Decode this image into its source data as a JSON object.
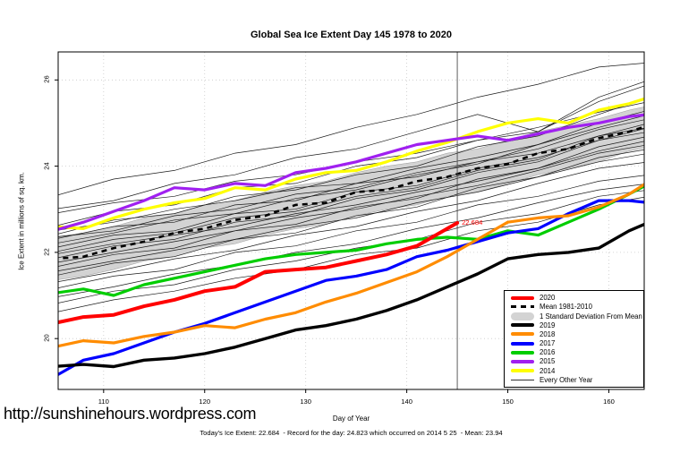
{
  "page": {
    "footer_url": "http://sunshinehours.wordpress.com",
    "stats_line": "Today's Ice Extent: 22.684  - Record for the day: 24.823 which occurred on 2014 5 25  - Mean: 23.94"
  },
  "chart_data": {
    "type": "line",
    "title": "Global Sea Ice Extent Day 145 1978 to 2020",
    "xlabel": "Day of Year",
    "ylabel": "Ice Extent in millions of sq. km.",
    "xlim": [
      105.5,
      163.5
    ],
    "ylim": [
      18.82,
      26.65
    ],
    "x_ticks": [
      110,
      120,
      130,
      140,
      150,
      160
    ],
    "y_ticks": [
      20,
      22,
      24,
      26
    ],
    "grid": true,
    "legend_position": "bottom-right",
    "marker_day": 145,
    "annotation": {
      "text": "22.684",
      "x": 145,
      "y": 22.684,
      "color": "#ff0000"
    },
    "x": [
      105,
      108,
      111,
      114,
      117,
      120,
      123,
      126,
      129,
      132,
      135,
      138,
      141,
      144,
      147,
      150,
      153,
      156,
      159,
      162,
      164
    ],
    "mean": {
      "name": "Mean 1981-2010",
      "color": "#000000",
      "values": [
        21.85,
        21.9,
        22.1,
        22.25,
        22.45,
        22.55,
        22.75,
        22.85,
        23.1,
        23.15,
        23.4,
        23.45,
        23.65,
        23.75,
        23.95,
        24.05,
        24.3,
        24.4,
        24.65,
        24.8,
        24.95
      ]
    },
    "band": {
      "name": "1 Standard Deviation From Mean",
      "color": "#d3d3d3",
      "upper": [
        22.35,
        22.45,
        22.6,
        22.8,
        22.9,
        23.1,
        23.2,
        23.4,
        23.55,
        23.65,
        23.85,
        24.0,
        24.1,
        24.3,
        24.4,
        24.6,
        24.8,
        24.95,
        25.1,
        25.3,
        25.4
      ],
      "lower": [
        21.35,
        21.45,
        21.6,
        21.8,
        21.9,
        22.1,
        22.2,
        22.4,
        22.55,
        22.65,
        22.85,
        23.0,
        23.1,
        23.3,
        23.4,
        23.6,
        23.8,
        23.95,
        24.1,
        24.35,
        24.45
      ]
    },
    "series": [
      {
        "name": "2014",
        "color": "#ffff00",
        "width": 3.2,
        "values": [
          22.6,
          22.55,
          22.8,
          23.0,
          23.15,
          23.25,
          23.5,
          23.45,
          23.7,
          23.85,
          23.9,
          24.1,
          24.35,
          24.55,
          24.8,
          25.0,
          25.1,
          25.0,
          25.3,
          25.45,
          25.6
        ]
      },
      {
        "name": "2015",
        "color": "#a020f0",
        "width": 3.2,
        "values": [
          22.5,
          22.7,
          22.95,
          23.2,
          23.5,
          23.45,
          23.6,
          23.55,
          23.85,
          23.95,
          24.1,
          24.3,
          24.5,
          24.6,
          24.7,
          24.6,
          24.75,
          24.9,
          25.0,
          25.15,
          25.2
        ]
      },
      {
        "name": "2016",
        "color": "#00cd00",
        "width": 3.2,
        "values": [
          21.05,
          21.15,
          21.0,
          21.25,
          21.4,
          21.55,
          21.7,
          21.85,
          21.95,
          22.0,
          22.05,
          22.2,
          22.3,
          22.35,
          22.3,
          22.5,
          22.4,
          22.7,
          23.0,
          23.35,
          23.6
        ]
      },
      {
        "name": "2017",
        "color": "#0000ff",
        "width": 3.2,
        "values": [
          19.1,
          19.5,
          19.65,
          19.9,
          20.15,
          20.35,
          20.6,
          20.85,
          21.1,
          21.35,
          21.45,
          21.6,
          21.9,
          22.05,
          22.25,
          22.45,
          22.55,
          22.9,
          23.2,
          23.2,
          23.15
        ]
      },
      {
        "name": "2018",
        "color": "#ff8c00",
        "width": 3.2,
        "values": [
          19.8,
          19.95,
          19.9,
          20.05,
          20.15,
          20.3,
          20.25,
          20.45,
          20.6,
          20.85,
          21.05,
          21.3,
          21.55,
          21.9,
          22.3,
          22.7,
          22.8,
          22.85,
          23.05,
          23.35,
          23.65
        ]
      },
      {
        "name": "2019",
        "color": "#000000",
        "width": 3.4,
        "values": [
          19.35,
          19.4,
          19.35,
          19.5,
          19.55,
          19.65,
          19.8,
          20.0,
          20.2,
          20.3,
          20.45,
          20.65,
          20.9,
          21.2,
          21.5,
          21.85,
          21.95,
          22.0,
          22.1,
          22.5,
          22.7
        ]
      },
      {
        "name": "2020",
        "color": "#ff0000",
        "width": 4,
        "x": [
          105,
          108,
          111,
          114,
          117,
          120,
          123,
          126,
          129,
          132,
          135,
          138,
          141,
          144,
          145
        ],
        "values": [
          20.35,
          20.5,
          20.55,
          20.75,
          20.9,
          21.1,
          21.2,
          21.55,
          21.6,
          21.65,
          21.8,
          21.95,
          22.15,
          22.55,
          22.684
        ]
      }
    ],
    "other_years": {
      "name": "Every Other Year",
      "color": "#1c1c1c",
      "x": [
        105,
        111,
        117,
        123,
        129,
        135,
        141,
        147,
        153,
        159,
        164
      ],
      "lines": [
        [
          23.3,
          23.7,
          23.9,
          24.3,
          24.5,
          24.9,
          25.2,
          25.6,
          25.9,
          26.3,
          26.4
        ],
        [
          23.0,
          23.2,
          23.6,
          23.8,
          24.2,
          24.4,
          24.8,
          25.2,
          24.8,
          25.6,
          26.0
        ],
        [
          22.9,
          23.15,
          23.3,
          23.65,
          23.8,
          24.1,
          24.3,
          24.6,
          24.9,
          25.25,
          25.5
        ],
        [
          22.6,
          22.95,
          23.1,
          23.5,
          23.6,
          24.0,
          24.2,
          24.6,
          24.8,
          25.5,
          25.9
        ],
        [
          22.5,
          22.7,
          23.0,
          23.2,
          23.5,
          23.6,
          23.95,
          24.2,
          24.5,
          25.0,
          25.3
        ],
        [
          22.4,
          22.75,
          22.9,
          23.3,
          23.45,
          23.8,
          24.0,
          24.45,
          24.7,
          25.2,
          25.6
        ],
        [
          22.35,
          22.5,
          22.85,
          23.0,
          23.35,
          23.5,
          23.85,
          24.1,
          24.4,
          24.85,
          25.1
        ],
        [
          22.3,
          22.6,
          22.7,
          23.1,
          23.2,
          23.6,
          23.75,
          24.1,
          24.3,
          24.7,
          24.9
        ],
        [
          22.2,
          22.45,
          22.75,
          22.9,
          23.25,
          23.45,
          23.8,
          24.05,
          24.5,
          24.9,
          25.2
        ],
        [
          22.1,
          22.4,
          22.5,
          22.9,
          23.0,
          23.4,
          23.55,
          23.95,
          24.2,
          24.6,
          24.8
        ],
        [
          22.0,
          22.3,
          22.45,
          22.8,
          22.95,
          23.3,
          23.5,
          23.9,
          24.15,
          24.7,
          25.0
        ],
        [
          21.95,
          22.2,
          22.4,
          22.6,
          22.9,
          23.1,
          23.4,
          23.65,
          23.95,
          24.35,
          24.6
        ],
        [
          21.85,
          22.15,
          22.3,
          22.7,
          22.85,
          23.25,
          23.45,
          23.85,
          24.1,
          24.6,
          24.9
        ],
        [
          21.75,
          22.0,
          22.25,
          22.5,
          22.8,
          23.0,
          23.3,
          23.55,
          23.9,
          24.3,
          24.5
        ],
        [
          21.65,
          21.95,
          22.1,
          22.5,
          22.65,
          23.05,
          23.25,
          23.7,
          23.95,
          24.45,
          24.7
        ],
        [
          21.55,
          21.8,
          22.05,
          22.3,
          22.6,
          22.8,
          23.15,
          23.4,
          23.75,
          24.1,
          24.3
        ],
        [
          21.45,
          21.75,
          21.9,
          22.3,
          22.45,
          22.85,
          23.05,
          23.5,
          23.75,
          24.2,
          24.4
        ],
        [
          21.3,
          21.55,
          21.85,
          22.05,
          22.4,
          22.6,
          22.95,
          23.2,
          23.6,
          23.95,
          24.1
        ],
        [
          21.15,
          21.45,
          21.6,
          22.0,
          22.15,
          22.5,
          22.7,
          23.1,
          23.3,
          23.65,
          23.8
        ],
        [
          20.95,
          21.2,
          21.5,
          21.7,
          22.0,
          22.2,
          22.55,
          22.8,
          23.15,
          23.45,
          23.6
        ],
        [
          20.8,
          21.1,
          21.25,
          21.6,
          21.8,
          22.1,
          22.3,
          22.7,
          22.9,
          23.3,
          23.45
        ],
        [
          20.6,
          20.9,
          21.1,
          21.4,
          21.6,
          21.95,
          22.1,
          22.5,
          22.7,
          23.1,
          23.3
        ]
      ]
    },
    "legend": [
      {
        "label": "2020",
        "kind": "thick",
        "color": "#ff0000"
      },
      {
        "label": "Mean 1981-2010",
        "kind": "dashed",
        "color": "#000000"
      },
      {
        "label": "1 Standard Deviation From Mean",
        "kind": "blob",
        "color": "#d3d3d3"
      },
      {
        "label": "2019",
        "kind": "thick",
        "color": "#000000"
      },
      {
        "label": "2018",
        "kind": "thick",
        "color": "#ff8c00"
      },
      {
        "label": "2017",
        "kind": "thick",
        "color": "#0000ff"
      },
      {
        "label": "2016",
        "kind": "thick",
        "color": "#00cd00"
      },
      {
        "label": "2015",
        "kind": "thick",
        "color": "#a020f0"
      },
      {
        "label": "2014",
        "kind": "thick",
        "color": "#ffff00"
      },
      {
        "label": "Every Other Year",
        "kind": "thin",
        "color": "#333333"
      }
    ],
    "colors": {
      "grid": "#c9c9c9",
      "axis": "#000000",
      "marker_line": "#4d4d4d"
    }
  }
}
